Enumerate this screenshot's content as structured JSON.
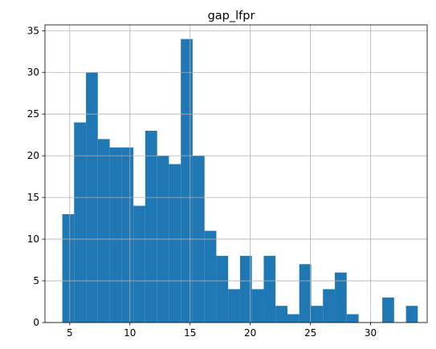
{
  "chart_data": {
    "type": "bar",
    "title": "gap_lfpr",
    "xlabel": "",
    "ylabel": "",
    "xlim": [
      2.94,
      34.7
    ],
    "ylim": [
      0,
      35.7
    ],
    "xticks": [
      5,
      10,
      15,
      20,
      25,
      30
    ],
    "yticks": [
      0,
      5,
      10,
      15,
      20,
      25,
      30,
      35
    ],
    "grid": true,
    "bin_edges": [
      4.38,
      5.36,
      6.35,
      7.33,
      8.32,
      9.3,
      10.29,
      11.27,
      12.26,
      13.24,
      14.23,
      15.21,
      16.2,
      17.18,
      18.16,
      19.15,
      20.13,
      21.12,
      22.1,
      23.09,
      24.07,
      25.06,
      26.04,
      27.03,
      28.01,
      29.0,
      29.98,
      30.97,
      31.95,
      32.94,
      33.92
    ],
    "counts": [
      13,
      24,
      30,
      22,
      21,
      21,
      14,
      23,
      20,
      19,
      34,
      20,
      11,
      8,
      4,
      8,
      4,
      8,
      2,
      1,
      7,
      2,
      4,
      6,
      1,
      0,
      0,
      3,
      0,
      2
    ],
    "series": [
      {
        "color": "#1f77b4"
      }
    ]
  },
  "colors": {
    "bar": "#1f77b4",
    "grid": "#b0b0b0",
    "axis": "#000000",
    "background": "#ffffff"
  }
}
